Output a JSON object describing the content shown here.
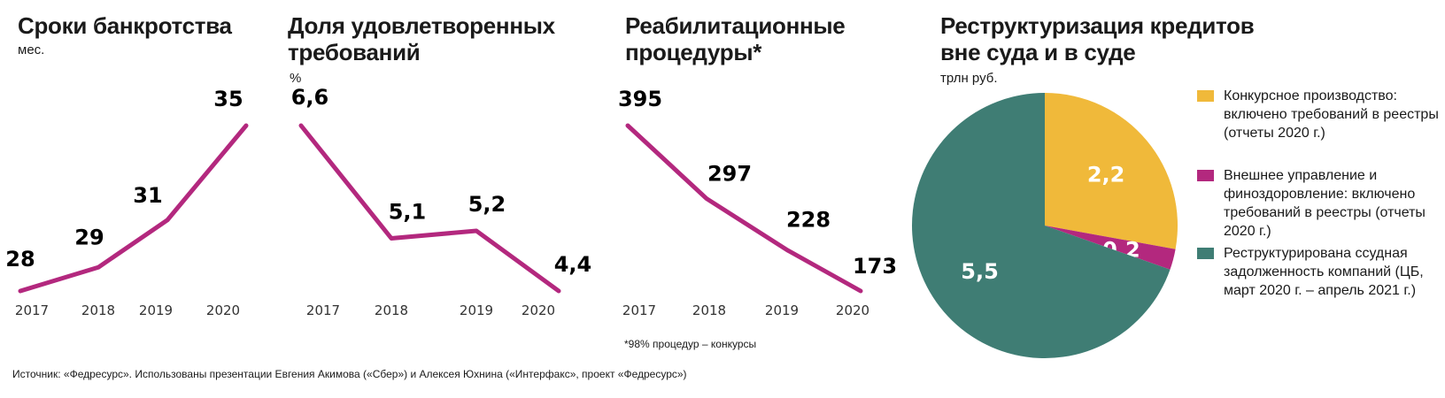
{
  "chart_data": [
    {
      "type": "line",
      "title": "Сроки банкротства",
      "subtitle": "мес.",
      "categories": [
        "2017",
        "2018",
        "2019",
        "2020"
      ],
      "values": [
        28,
        29,
        31,
        35
      ],
      "color": "#b3287e"
    },
    {
      "type": "line",
      "title": "Доля удовлетворенных требований",
      "subtitle": "%",
      "categories": [
        "2017",
        "2018",
        "2019",
        "2020"
      ],
      "values": [
        6.6,
        5.1,
        5.2,
        4.4
      ],
      "value_labels": [
        "6,6",
        "5,1",
        "5,2",
        "4,4"
      ],
      "color": "#b3287e"
    },
    {
      "type": "line",
      "title": "Реабилитационные процедуры*",
      "categories": [
        "2017",
        "2018",
        "2019",
        "2020"
      ],
      "values": [
        395,
        297,
        228,
        173
      ],
      "color": "#b3287e",
      "annotation": "*98% процедур – конкурсы"
    },
    {
      "type": "pie",
      "title": "Реструктуризация кредитов вне суда и в суде",
      "subtitle": "трлн руб.",
      "categories": [
        "Конкурсное производство: включено требований в реестры (отчеты 2020 г.)",
        "Внешнее управление и финоздоровление: включено требований в реестры (отчеты 2020 г.)",
        "Реструктурирована ссудная задолженность компаний (ЦБ, март 2020 г. – апрель 2021 г.)"
      ],
      "values": [
        2.2,
        0.2,
        5.5
      ],
      "value_labels": [
        "2,2",
        "0,2",
        "5,5"
      ],
      "colors": [
        "#f0b93a",
        "#b3287e",
        "#3f7d74"
      ]
    }
  ],
  "source": "Источник: «Федресурс». Использованы презентации Евгения Акимова («Сбер») и Алексея Юхнина («Интерфакс», проект «Федресурс»)"
}
